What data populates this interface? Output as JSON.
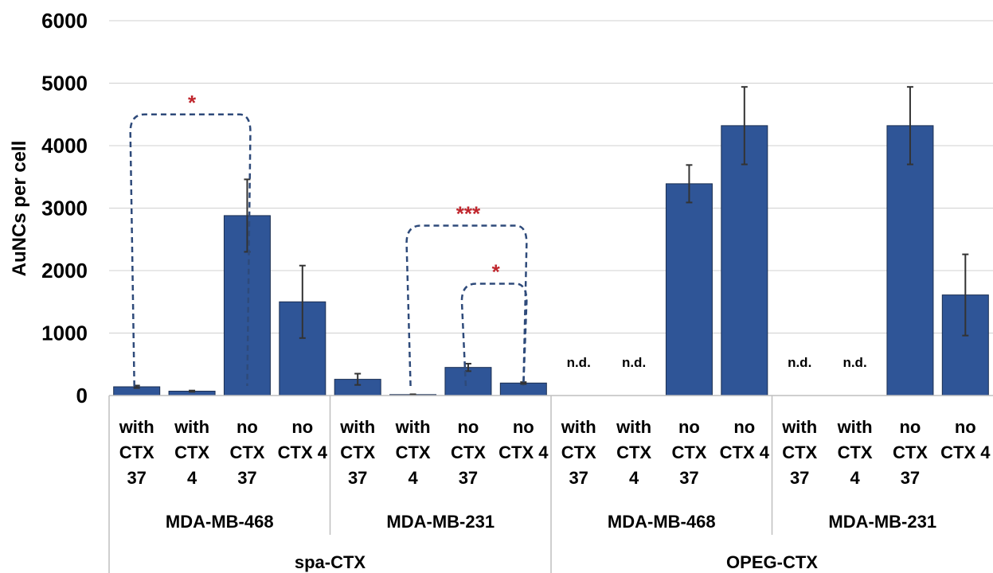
{
  "chart_data": {
    "type": "bar",
    "ylabel": "AuNCs per cell",
    "ylim": [
      0,
      6000
    ],
    "yticks": [
      0,
      1000,
      2000,
      3000,
      4000,
      5000,
      6000
    ],
    "grid": true,
    "bar_color": "#2f5597",
    "significance_color": "#c0262d",
    "categories": [
      [
        "with",
        "CTX",
        "37"
      ],
      [
        "with",
        "CTX",
        "4"
      ],
      [
        "no",
        "CTX",
        "37"
      ],
      [
        "no",
        "CTX 4"
      ],
      [
        "with",
        "CTX",
        "37"
      ],
      [
        "with",
        "CTX",
        "4"
      ],
      [
        "no",
        "CTX",
        "37"
      ],
      [
        "no",
        "CTX 4"
      ],
      [
        "with",
        "CTX",
        "37"
      ],
      [
        "with",
        "CTX",
        "4"
      ],
      [
        "no",
        "CTX",
        "37"
      ],
      [
        "no",
        "CTX 4"
      ],
      [
        "with",
        "CTX",
        "37"
      ],
      [
        "with",
        "CTX",
        "4"
      ],
      [
        "no",
        "CTX",
        "37"
      ],
      [
        "no",
        "CTX 4"
      ]
    ],
    "values": [
      140,
      70,
      2880,
      1500,
      260,
      15,
      450,
      200,
      null,
      null,
      3390,
      4320,
      null,
      null,
      4320,
      1610
    ],
    "errors": [
      20,
      10,
      580,
      580,
      90,
      5,
      60,
      15,
      null,
      null,
      300,
      620,
      null,
      null,
      620,
      650
    ],
    "not_detected_label": "n.d.",
    "cell_lines": [
      "MDA-MB-468",
      "MDA-MB-231",
      "MDA-MB-468",
      "MDA-MB-231"
    ],
    "constructs": [
      "spa-CTX",
      "OPEG-CTX"
    ],
    "significance": [
      {
        "from": 0,
        "to": 2,
        "y": 4500,
        "label": "*"
      },
      {
        "from": 5,
        "to": 7,
        "y": 2720,
        "label": "***"
      },
      {
        "from": 6,
        "to": 7,
        "y": 1790,
        "label": "*"
      }
    ]
  }
}
